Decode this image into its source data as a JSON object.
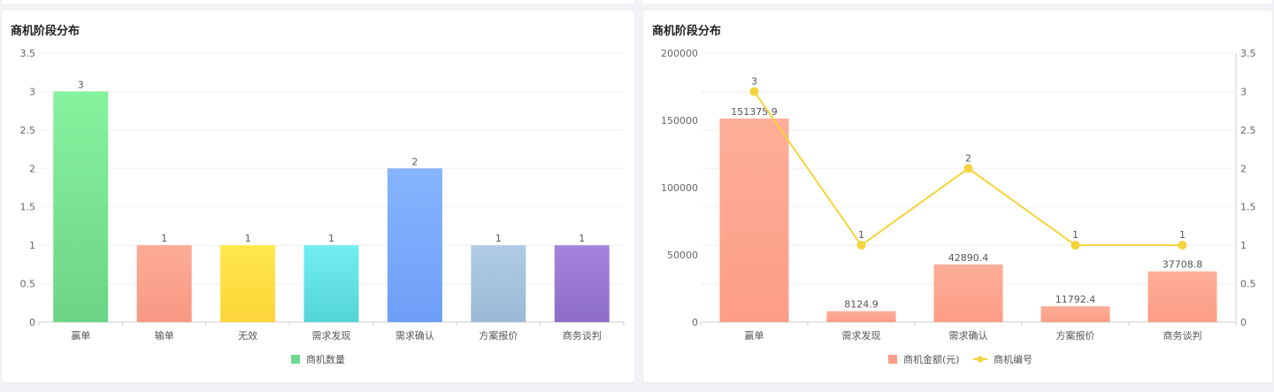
{
  "chart_data": [
    {
      "type": "bar",
      "title": "商机阶段分布",
      "categories": [
        "赢单",
        "输单",
        "无效",
        "需求发现",
        "需求确认",
        "方案报价",
        "商务谈判"
      ],
      "series": [
        {
          "name": "商机数量",
          "values": [
            3,
            1,
            1,
            1,
            2,
            1,
            1
          ],
          "color": "#6fd98f"
        }
      ],
      "bar_colors": [
        [
          "#86f29e",
          "#6cd585"
        ],
        [
          "#fdab96",
          "#f89984"
        ],
        [
          "#ffe94a",
          "#fcd43a"
        ],
        [
          "#72eef0",
          "#55d4d8"
        ],
        [
          "#86b4ff",
          "#6e9ff7"
        ],
        [
          "#b0cce4",
          "#9bb9d6"
        ],
        [
          "#a584dc",
          "#8d6ec6"
        ]
      ],
      "ylim": [
        0,
        3.5
      ],
      "yticks": [
        "0",
        "0.5",
        "1",
        "1.5",
        "2",
        "2.5",
        "3",
        "3.5"
      ],
      "grid": true,
      "legend_position": "bottom"
    },
    {
      "type": "bar+line",
      "title": "商机阶段分布",
      "categories": [
        "赢单",
        "需求发现",
        "需求确认",
        "方案报价",
        "商务谈判"
      ],
      "series": [
        {
          "name": "商机金额(元)",
          "type": "bar",
          "axis": "left",
          "values": [
            151375.9,
            8124.9,
            42890.4,
            11792.4,
            37708.8
          ],
          "labels": [
            "151375.9",
            "8124.9",
            "42890.4",
            "11792.4",
            "37708.8"
          ],
          "color": "#fd9d85"
        },
        {
          "name": "商机编号",
          "type": "line",
          "axis": "right",
          "values": [
            3,
            1,
            2,
            1,
            1
          ],
          "labels": [
            "3",
            "1",
            "2",
            "1",
            "1"
          ],
          "color": "#f5d33b"
        }
      ],
      "ylim_left": [
        0,
        200000
      ],
      "yticks_left": [
        "0",
        "50000",
        "100000",
        "150000",
        "200000"
      ],
      "ylim_right": [
        0,
        3.5
      ],
      "yticks_right": [
        "0",
        "0.5",
        "1",
        "1.5",
        "2",
        "2.5",
        "3",
        "3.5"
      ],
      "grid": true,
      "legend_position": "bottom"
    }
  ]
}
